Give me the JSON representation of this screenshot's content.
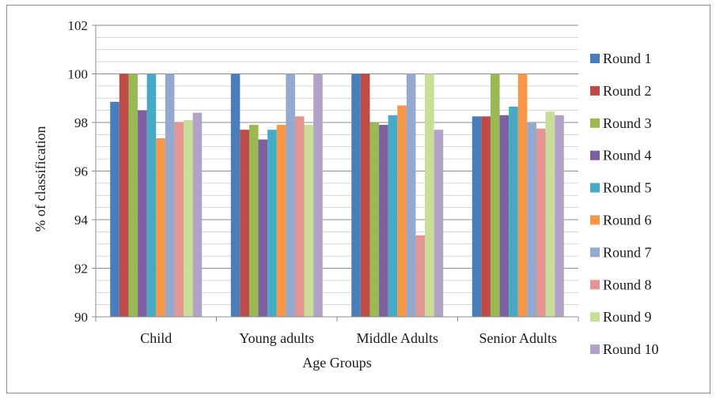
{
  "chart_data": {
    "type": "bar",
    "title": "",
    "xlabel": "Age Groups",
    "ylabel": "% of classification",
    "ylim": [
      90,
      102
    ],
    "yticks": [
      90,
      92,
      94,
      96,
      98,
      100,
      102
    ],
    "grid": true,
    "legend_position": "right",
    "categories": [
      "Child",
      "Young adults",
      "Middle Adults",
      "Senior Adults"
    ],
    "series": [
      {
        "name": "Round 1",
        "color": "#4a7ebb",
        "values": [
          98.85,
          100,
          100,
          98.25
        ]
      },
      {
        "name": "Round 2",
        "color": "#be4b48",
        "values": [
          100,
          97.7,
          100,
          98.25
        ]
      },
      {
        "name": "Round 3",
        "color": "#98b954",
        "values": [
          100,
          97.9,
          98.0,
          100
        ]
      },
      {
        "name": "Round 4",
        "color": "#7d60a0",
        "values": [
          98.5,
          97.3,
          97.9,
          98.3
        ]
      },
      {
        "name": "Round 5",
        "color": "#46aac5",
        "values": [
          100,
          97.7,
          98.3,
          98.65
        ]
      },
      {
        "name": "Round 6",
        "color": "#f79646",
        "values": [
          97.35,
          97.9,
          98.7,
          100
        ]
      },
      {
        "name": "Round 7",
        "color": "#93a9d0",
        "values": [
          100,
          100,
          100,
          98.0
        ]
      },
      {
        "name": "Round 8",
        "color": "#e39593",
        "values": [
          98.0,
          98.25,
          93.35,
          97.75
        ]
      },
      {
        "name": "Round 9",
        "color": "#c9dd97",
        "values": [
          98.1,
          97.9,
          100,
          98.45
        ]
      },
      {
        "name": "Round 10",
        "color": "#b3a2c7",
        "values": [
          98.4,
          100,
          97.7,
          98.3
        ]
      }
    ]
  }
}
